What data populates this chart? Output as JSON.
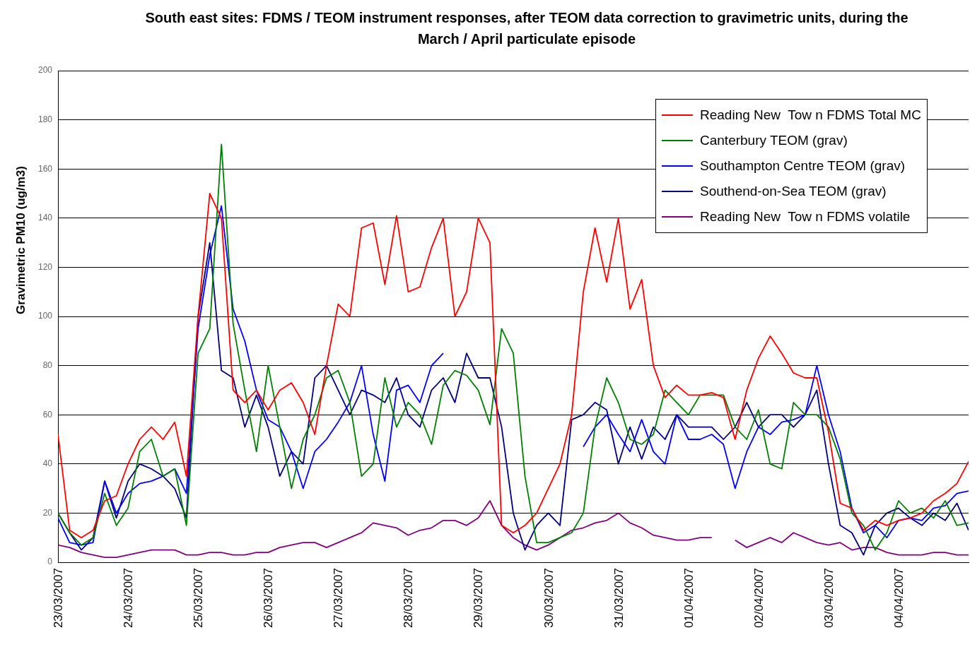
{
  "chart_data": {
    "type": "line",
    "title": "South east sites: FDMS / TEOM instrument responses, after TEOM data correction to gravimetric units, during the March / April particulate episode",
    "ylabel": "Gravimetric PM10 (ug/m3)",
    "x": [
      "2007-03-23T00:00",
      "2007-03-23T04:00",
      "2007-03-23T08:00",
      "2007-03-23T12:00",
      "2007-03-23T16:00",
      "2007-03-23T20:00",
      "2007-03-24T00:00",
      "2007-03-24T04:00",
      "2007-03-24T08:00",
      "2007-03-24T12:00",
      "2007-03-24T16:00",
      "2007-03-24T20:00",
      "2007-03-25T00:00",
      "2007-03-25T04:00",
      "2007-03-25T08:00",
      "2007-03-25T12:00",
      "2007-03-25T16:00",
      "2007-03-25T20:00",
      "2007-03-26T00:00",
      "2007-03-26T04:00",
      "2007-03-26T08:00",
      "2007-03-26T12:00",
      "2007-03-26T16:00",
      "2007-03-26T20:00",
      "2007-03-27T00:00",
      "2007-03-27T04:00",
      "2007-03-27T08:00",
      "2007-03-27T12:00",
      "2007-03-27T16:00",
      "2007-03-27T20:00",
      "2007-03-28T00:00",
      "2007-03-28T04:00",
      "2007-03-28T08:00",
      "2007-03-28T12:00",
      "2007-03-28T16:00",
      "2007-03-28T20:00",
      "2007-03-29T00:00",
      "2007-03-29T04:00",
      "2007-03-29T08:00",
      "2007-03-29T12:00",
      "2007-03-29T16:00",
      "2007-03-29T20:00",
      "2007-03-30T00:00",
      "2007-03-30T04:00",
      "2007-03-30T08:00",
      "2007-03-30T12:00",
      "2007-03-30T16:00",
      "2007-03-30T20:00",
      "2007-03-31T00:00",
      "2007-03-31T04:00",
      "2007-03-31T08:00",
      "2007-03-31T12:00",
      "2007-03-31T16:00",
      "2007-03-31T20:00",
      "2007-04-01T00:00",
      "2007-04-01T04:00",
      "2007-04-01T08:00",
      "2007-04-01T12:00",
      "2007-04-01T16:00",
      "2007-04-01T20:00",
      "2007-04-02T00:00",
      "2007-04-02T04:00",
      "2007-04-02T08:00",
      "2007-04-02T12:00",
      "2007-04-02T16:00",
      "2007-04-02T20:00",
      "2007-04-03T00:00",
      "2007-04-03T04:00",
      "2007-04-03T08:00",
      "2007-04-03T12:00",
      "2007-04-03T16:00",
      "2007-04-03T20:00",
      "2007-04-04T00:00",
      "2007-04-04T04:00",
      "2007-04-04T08:00",
      "2007-04-04T12:00",
      "2007-04-04T16:00",
      "2007-04-04T20:00",
      "2007-04-05T00:00"
    ],
    "series": [
      {
        "name": "Reading New  Tow n FDMS Total MC",
        "color": "#ff0000",
        "values": [
          52,
          13,
          10,
          13,
          25,
          27,
          40,
          50,
          55,
          50,
          57,
          35,
          100,
          150,
          140,
          70,
          65,
          70,
          62,
          70,
          73,
          65,
          52,
          80,
          105,
          100,
          136,
          138,
          113,
          141,
          110,
          112,
          128,
          140,
          100,
          110,
          140,
          130,
          15,
          12,
          15,
          20,
          30,
          40,
          60,
          110,
          136,
          114,
          140,
          103,
          115,
          80,
          67,
          72,
          68,
          68,
          69,
          67,
          50,
          70,
          83,
          92,
          85,
          77,
          75,
          75,
          53,
          24,
          22,
          13,
          17,
          15,
          17,
          18,
          20,
          25,
          28,
          32,
          41
        ]
      },
      {
        "name": "Canterbury TEOM (grav)",
        "color": "#008000",
        "values": [
          20,
          12,
          7,
          10,
          28,
          15,
          22,
          45,
          50,
          35,
          38,
          15,
          85,
          95,
          170,
          97,
          70,
          45,
          80,
          55,
          30,
          50,
          60,
          75,
          78,
          65,
          35,
          40,
          75,
          55,
          65,
          60,
          48,
          72,
          78,
          76,
          70,
          56,
          95,
          85,
          35,
          8,
          8,
          10,
          12,
          20,
          55,
          75,
          65,
          50,
          48,
          52,
          70,
          65,
          60,
          68,
          68,
          68,
          55,
          50,
          62,
          40,
          38,
          65,
          60,
          60,
          55,
          42,
          20,
          15,
          5,
          12,
          25,
          20,
          22,
          18,
          25,
          15,
          16
        ]
      },
      {
        "name": "Southampton Centre TEOM (grav)",
        "color": "#0000ff",
        "values": [
          18,
          8,
          7,
          8,
          33,
          20,
          28,
          32,
          33,
          35,
          38,
          28,
          95,
          125,
          145,
          103,
          90,
          70,
          58,
          55,
          45,
          30,
          45,
          50,
          57,
          65,
          80,
          52,
          33,
          70,
          72,
          65,
          80,
          85,
          null,
          null,
          null,
          null,
          null,
          null,
          null,
          null,
          null,
          null,
          null,
          47,
          55,
          60,
          52,
          45,
          58,
          45,
          40,
          60,
          50,
          50,
          52,
          48,
          30,
          45,
          55,
          52,
          57,
          58,
          60,
          80,
          60,
          45,
          22,
          12,
          15,
          10,
          17,
          18,
          17,
          22,
          23,
          28,
          29
        ]
      },
      {
        "name": "Southend-on-Sea TEOM (grav)",
        "color": "#000080",
        "values": [
          20,
          12,
          5,
          10,
          33,
          18,
          33,
          40,
          38,
          35,
          30,
          18,
          100,
          130,
          78,
          75,
          55,
          68,
          55,
          35,
          45,
          40,
          75,
          80,
          70,
          60,
          70,
          68,
          65,
          75,
          60,
          55,
          70,
          75,
          65,
          85,
          75,
          75,
          55,
          20,
          5,
          15,
          20,
          15,
          58,
          60,
          65,
          62,
          40,
          55,
          42,
          55,
          50,
          60,
          55,
          55,
          55,
          50,
          55,
          65,
          55,
          60,
          60,
          55,
          60,
          70,
          40,
          15,
          12,
          3,
          15,
          20,
          22,
          18,
          15,
          20,
          17,
          24,
          13
        ]
      },
      {
        "name": "Reading New  Tow n FDMS volatile",
        "color": "#800080",
        "values": [
          7,
          6,
          4,
          3,
          2,
          2,
          3,
          4,
          5,
          5,
          5,
          3,
          3,
          4,
          4,
          3,
          3,
          4,
          4,
          6,
          7,
          8,
          8,
          6,
          8,
          10,
          12,
          16,
          15,
          14,
          11,
          13,
          14,
          17,
          17,
          15,
          18,
          25,
          15,
          10,
          7,
          5,
          7,
          10,
          13,
          14,
          16,
          17,
          20,
          16,
          14,
          11,
          10,
          9,
          9,
          10,
          10,
          null,
          9,
          6,
          8,
          10,
          8,
          12,
          10,
          8,
          7,
          8,
          5,
          6,
          6,
          4,
          3,
          3,
          3,
          4,
          4,
          3,
          3
        ]
      }
    ],
    "xlim": [
      "2007-03-23T00:00",
      "2007-04-05T00:00"
    ],
    "xticks": [
      {
        "value": "2007-03-23",
        "label": "23/03/2007"
      },
      {
        "value": "2007-03-24",
        "label": "24/03/2007"
      },
      {
        "value": "2007-03-25",
        "label": "25/03/2007"
      },
      {
        "value": "2007-03-26",
        "label": "26/03/2007"
      },
      {
        "value": "2007-03-27",
        "label": "27/03/2007"
      },
      {
        "value": "2007-03-28",
        "label": "28/03/2007"
      },
      {
        "value": "2007-03-29",
        "label": "29/03/2007"
      },
      {
        "value": "2007-03-30",
        "label": "30/03/2007"
      },
      {
        "value": "2007-03-31",
        "label": "31/03/2007"
      },
      {
        "value": "2007-04-01",
        "label": "01/04/2007"
      },
      {
        "value": "2007-04-02",
        "label": "02/04/2007"
      },
      {
        "value": "2007-04-03",
        "label": "03/04/2007"
      },
      {
        "value": "2007-04-04",
        "label": "04/04/2007"
      }
    ],
    "ylim": [
      0,
      200
    ],
    "yticks": [
      0,
      20,
      40,
      60,
      80,
      100,
      120,
      140,
      160,
      180,
      200
    ],
    "grid": "y",
    "legend": "top right",
    "marker": "none",
    "line_style": "solid"
  }
}
